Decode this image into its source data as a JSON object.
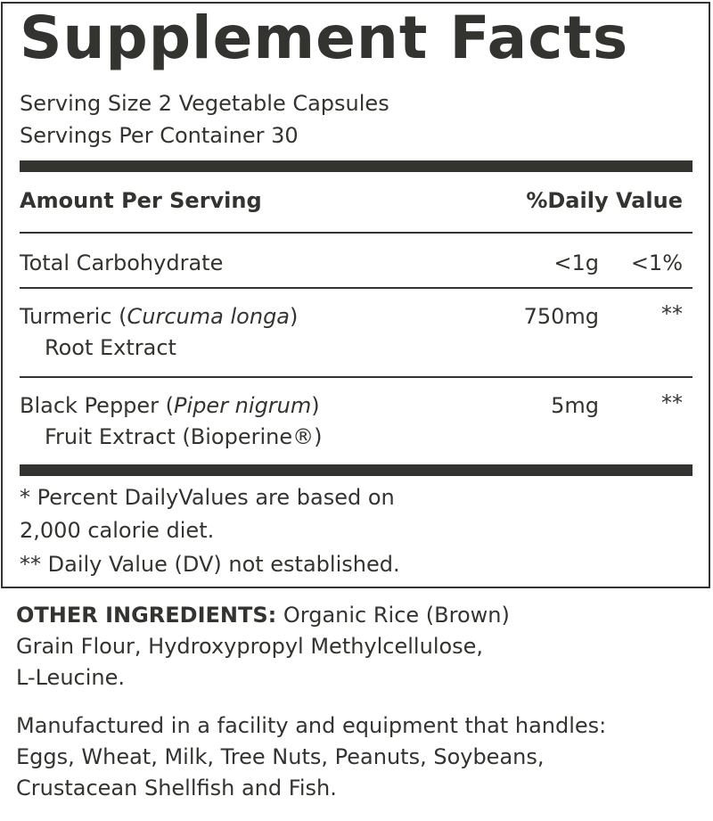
{
  "title": "Supplement Facts",
  "serving_size": "Serving Size 2 Vegetable Capsules",
  "servings_per_container": "Servings Per Container 30",
  "header": {
    "amount": "Amount Per Serving",
    "dv": "%Daily Value"
  },
  "rows": [
    {
      "name": "Total Carbohydrate",
      "latin": "",
      "suffix": "",
      "line2": "",
      "amount": "<1g",
      "dv": "<1%"
    },
    {
      "name": "Turmeric (",
      "latin": "Curcuma longa",
      "suffix": ")",
      "line2": "Root Extract",
      "amount": "750mg",
      "dv": "**"
    },
    {
      "name": "Black Pepper (",
      "latin": "Piper nigrum",
      "suffix": ")",
      "line2": "Fruit Extract (Bioperine®)",
      "amount": "5mg",
      "dv": "**"
    }
  ],
  "footnotes": [
    "* Percent DailyValues are based on",
    "2,000 calorie diet.",
    "** Daily Value (DV) not established."
  ],
  "other_ingredients": {
    "label": "OTHER INGREDIENTS:",
    "line1": " Organic Rice (Brown)",
    "line2": "Grain Flour, Hydroxypropyl Methylcellulose,",
    "line3": "L-Leucine."
  },
  "allergen": [
    "Manufactured in a facility and equipment that handles:",
    "Eggs, Wheat, Milk, Tree Nuts, Peanuts, Soybeans,",
    "Crustacean Shellfish and Fish."
  ]
}
